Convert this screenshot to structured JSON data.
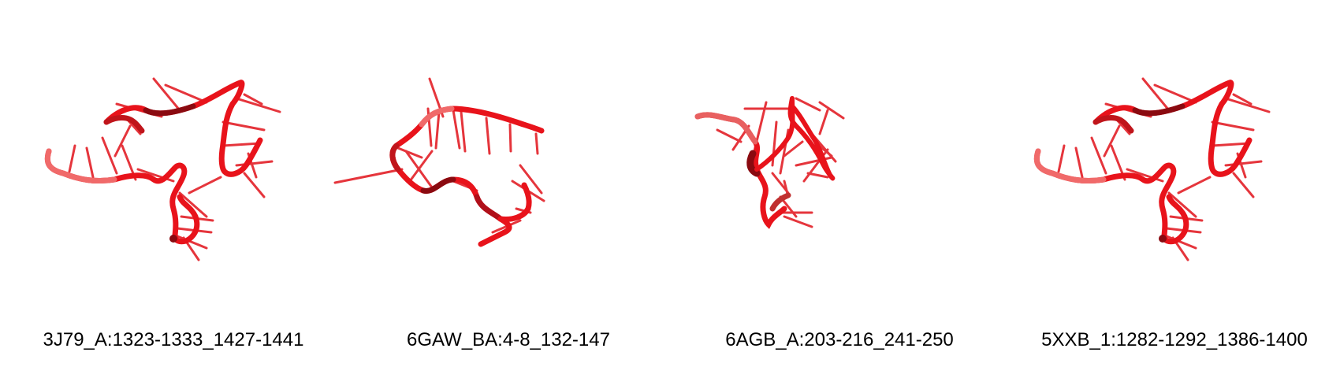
{
  "colors": {
    "backbone": "#e8131b",
    "backbone_dark": "#8a0a10",
    "backbone_light": "#f06a6a",
    "base": "#e32027",
    "background": "#ffffff"
  },
  "structures": [
    {
      "id": "3J79_A:1323-1333_1427-1441"
    },
    {
      "id": "6GAW_BA:4-8_132-147"
    },
    {
      "id": "6AGB_A:203-216_241-250"
    },
    {
      "id": "5XXB_1:1282-1292_1386-1400"
    }
  ]
}
